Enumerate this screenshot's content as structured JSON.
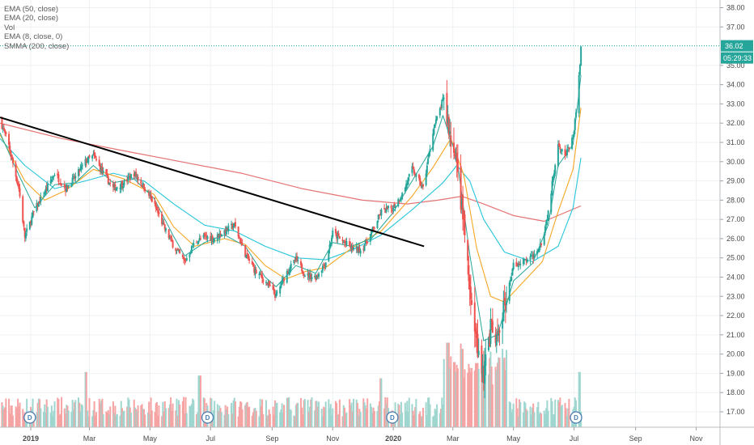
{
  "indicators": [
    "EMA (50, close)",
    "EMA (20, close)",
    "Vol",
    "EMA (8, close, 0)",
    "SMMA (200, close)"
  ],
  "colors": {
    "up": "#26a69a",
    "down": "#ef5350",
    "ema50": "#26c6da",
    "ema20": "#f6a623",
    "ema8": "#26a69a",
    "smma200": "#e57373",
    "trendline": "#000000",
    "price_badge": "#26a69a",
    "vol_up": "#9fd6cf",
    "vol_down": "#f5a3a3"
  },
  "chart_data": {
    "type": "candlestick",
    "x_labels": [
      {
        "label": "2019",
        "date": "2019-01-01",
        "bold": true
      },
      {
        "label": "Mar",
        "date": "2019-03-01"
      },
      {
        "label": "May",
        "date": "2019-05-01"
      },
      {
        "label": "Jul",
        "date": "2019-07-01"
      },
      {
        "label": "Sep",
        "date": "2019-09-01"
      },
      {
        "label": "Nov",
        "date": "2019-11-01"
      },
      {
        "label": "2020",
        "date": "2020-01-01",
        "bold": true
      },
      {
        "label": "Mar",
        "date": "2020-03-01"
      },
      {
        "label": "May",
        "date": "2020-05-01"
      },
      {
        "label": "Jul",
        "date": "2020-07-01"
      },
      {
        "label": "Sep",
        "date": "2020-09-01"
      },
      {
        "label": "Nov",
        "date": "2020-11-01"
      }
    ],
    "y_ticks": [
      "17.00",
      "18.00",
      "19.00",
      "20.00",
      "21.00",
      "22.00",
      "23.00",
      "24.00",
      "25.00",
      "26.00",
      "27.00",
      "28.00",
      "29.00",
      "30.00",
      "31.00",
      "32.00",
      "33.00",
      "34.00",
      "35.00",
      "37.00",
      "38.00"
    ],
    "ylim": [
      16.2,
      38.4
    ],
    "xlim": [
      "2018-12-01",
      "2020-11-25"
    ],
    "last_price": "36.02",
    "last_price_value": 36.02,
    "countdown": "05:29:33",
    "dividend_markers": [
      {
        "label": "D",
        "date": "2018-12-31"
      },
      {
        "label": "D",
        "date": "2019-06-28"
      },
      {
        "label": "D",
        "date": "2019-12-31"
      },
      {
        "label": "D",
        "date": "2020-07-03"
      }
    ],
    "price_path": [
      [
        "2018-12-01",
        32.2
      ],
      [
        "2018-12-10",
        30.8
      ],
      [
        "2018-12-20",
        28.6
      ],
      [
        "2018-12-26",
        26.1
      ],
      [
        "2019-01-05",
        27.5
      ],
      [
        "2019-01-15",
        28.4
      ],
      [
        "2019-01-25",
        29.4
      ],
      [
        "2019-02-05",
        28.6
      ],
      [
        "2019-02-15",
        29.2
      ],
      [
        "2019-02-25",
        30.0
      ],
      [
        "2019-03-05",
        30.3
      ],
      [
        "2019-03-15",
        29.4
      ],
      [
        "2019-03-25",
        28.6
      ],
      [
        "2019-04-05",
        28.9
      ],
      [
        "2019-04-15",
        29.4
      ],
      [
        "2019-04-25",
        28.7
      ],
      [
        "2019-05-05",
        27.8
      ],
      [
        "2019-05-15",
        26.6
      ],
      [
        "2019-05-25",
        25.6
      ],
      [
        "2019-06-05",
        24.8
      ],
      [
        "2019-06-15",
        25.8
      ],
      [
        "2019-06-25",
        26.1
      ],
      [
        "2019-07-05",
        26.0
      ],
      [
        "2019-07-15",
        26.4
      ],
      [
        "2019-07-25",
        26.7
      ],
      [
        "2019-08-05",
        25.2
      ],
      [
        "2019-08-15",
        24.3
      ],
      [
        "2019-08-25",
        23.8
      ],
      [
        "2019-09-05",
        23.0
      ],
      [
        "2019-09-15",
        24.2
      ],
      [
        "2019-09-25",
        24.9
      ],
      [
        "2019-10-05",
        24.1
      ],
      [
        "2019-10-15",
        24.0
      ],
      [
        "2019-10-25",
        24.8
      ],
      [
        "2019-11-01",
        26.3
      ],
      [
        "2019-11-10",
        25.9
      ],
      [
        "2019-11-20",
        25.5
      ],
      [
        "2019-11-30",
        25.4
      ],
      [
        "2019-12-10",
        26.3
      ],
      [
        "2019-12-20",
        27.4
      ],
      [
        "2019-12-31",
        27.6
      ],
      [
        "2020-01-10",
        28.3
      ],
      [
        "2020-01-20",
        29.6
      ],
      [
        "2020-01-31",
        28.6
      ],
      [
        "2020-02-10",
        31.6
      ],
      [
        "2020-02-20",
        33.2
      ],
      [
        "2020-02-28",
        31.0
      ],
      [
        "2020-03-05",
        29.6
      ],
      [
        "2020-03-12",
        26.8
      ],
      [
        "2020-03-18",
        23.2
      ],
      [
        "2020-03-25",
        20.5
      ],
      [
        "2020-04-01",
        19.0
      ],
      [
        "2020-04-08",
        21.3
      ],
      [
        "2020-04-15",
        20.6
      ],
      [
        "2020-04-22",
        22.6
      ],
      [
        "2020-05-01",
        24.6
      ],
      [
        "2020-05-10",
        24.8
      ],
      [
        "2020-05-20",
        25.0
      ],
      [
        "2020-05-30",
        25.9
      ],
      [
        "2020-06-05",
        27.4
      ],
      [
        "2020-06-10",
        29.2
      ],
      [
        "2020-06-15",
        31.0
      ],
      [
        "2020-06-22",
        30.3
      ],
      [
        "2020-06-30",
        31.2
      ],
      [
        "2020-07-05",
        33.5
      ],
      [
        "2020-07-08",
        36.02
      ]
    ],
    "ema8": [
      [
        "2018-12-01",
        31.5
      ],
      [
        "2018-12-20",
        29.3
      ],
      [
        "2019-01-05",
        27.6
      ],
      [
        "2019-01-25",
        28.8
      ],
      [
        "2019-02-15",
        28.9
      ],
      [
        "2019-03-05",
        29.8
      ],
      [
        "2019-03-25",
        28.9
      ],
      [
        "2019-04-15",
        29.1
      ],
      [
        "2019-05-05",
        28.1
      ],
      [
        "2019-05-25",
        26.1
      ],
      [
        "2019-06-05",
        25.1
      ],
      [
        "2019-06-25",
        25.8
      ],
      [
        "2019-07-15",
        26.2
      ],
      [
        "2019-08-05",
        25.6
      ],
      [
        "2019-08-25",
        24.0
      ],
      [
        "2019-09-05",
        23.5
      ],
      [
        "2019-09-25",
        24.6
      ],
      [
        "2019-10-15",
        24.2
      ],
      [
        "2019-11-01",
        25.8
      ],
      [
        "2019-11-20",
        25.6
      ],
      [
        "2019-12-10",
        26.0
      ],
      [
        "2019-12-31",
        27.3
      ],
      [
        "2020-01-20",
        29.0
      ],
      [
        "2020-02-10",
        30.8
      ],
      [
        "2020-02-20",
        32.4
      ],
      [
        "2020-03-05",
        30.2
      ],
      [
        "2020-03-18",
        25.2
      ],
      [
        "2020-04-01",
        20.7
      ],
      [
        "2020-04-15",
        21.0
      ],
      [
        "2020-05-01",
        23.8
      ],
      [
        "2020-05-20",
        24.7
      ],
      [
        "2020-06-05",
        26.7
      ],
      [
        "2020-06-15",
        29.8
      ],
      [
        "2020-06-30",
        30.9
      ],
      [
        "2020-07-08",
        34.5
      ]
    ],
    "ema20": [
      [
        "2018-12-01",
        31.4
      ],
      [
        "2018-12-26",
        29.0
      ],
      [
        "2019-01-15",
        28.0
      ],
      [
        "2019-02-05",
        28.5
      ],
      [
        "2019-03-05",
        29.6
      ],
      [
        "2019-04-05",
        29.1
      ],
      [
        "2019-05-05",
        28.3
      ],
      [
        "2019-05-25",
        26.6
      ],
      [
        "2019-06-15",
        25.6
      ],
      [
        "2019-07-15",
        26.0
      ],
      [
        "2019-08-05",
        25.7
      ],
      [
        "2019-08-25",
        24.6
      ],
      [
        "2019-09-15",
        23.9
      ],
      [
        "2019-10-05",
        24.3
      ],
      [
        "2019-10-25",
        24.5
      ],
      [
        "2019-11-20",
        25.5
      ],
      [
        "2019-12-20",
        26.4
      ],
      [
        "2020-01-20",
        28.2
      ],
      [
        "2020-02-10",
        29.7
      ],
      [
        "2020-02-28",
        31.2
      ],
      [
        "2020-03-12",
        29.3
      ],
      [
        "2020-03-25",
        25.5
      ],
      [
        "2020-04-08",
        23.0
      ],
      [
        "2020-04-22",
        22.7
      ],
      [
        "2020-05-10",
        23.7
      ],
      [
        "2020-05-30",
        24.8
      ],
      [
        "2020-06-15",
        27.4
      ],
      [
        "2020-06-30",
        29.6
      ],
      [
        "2020-07-08",
        32.8
      ]
    ],
    "ema50": [
      [
        "2018-12-01",
        31.2
      ],
      [
        "2018-12-26",
        29.8
      ],
      [
        "2019-01-25",
        28.6
      ],
      [
        "2019-02-25",
        29.0
      ],
      [
        "2019-03-25",
        29.4
      ],
      [
        "2019-04-25",
        29.0
      ],
      [
        "2019-05-25",
        27.8
      ],
      [
        "2019-06-25",
        26.7
      ],
      [
        "2019-07-25",
        26.4
      ],
      [
        "2019-08-25",
        25.6
      ],
      [
        "2019-09-25",
        25.0
      ],
      [
        "2019-10-25",
        24.9
      ],
      [
        "2019-11-20",
        25.4
      ],
      [
        "2019-12-20",
        26.2
      ],
      [
        "2020-01-20",
        27.5
      ],
      [
        "2020-02-20",
        28.9
      ],
      [
        "2020-03-05",
        29.8
      ],
      [
        "2020-03-18",
        29.0
      ],
      [
        "2020-04-01",
        27.0
      ],
      [
        "2020-04-22",
        25.3
      ],
      [
        "2020-05-20",
        24.8
      ],
      [
        "2020-06-15",
        25.6
      ],
      [
        "2020-06-30",
        27.6
      ],
      [
        "2020-07-08",
        30.2
      ]
    ],
    "smma200": [
      [
        "2018-12-01",
        32.0
      ],
      [
        "2019-02-01",
        31.2
      ],
      [
        "2019-04-01",
        30.6
      ],
      [
        "2019-06-01",
        30.0
      ],
      [
        "2019-08-01",
        29.4
      ],
      [
        "2019-10-01",
        28.6
      ],
      [
        "2019-12-01",
        28.0
      ],
      [
        "2020-01-15",
        27.8
      ],
      [
        "2020-02-15",
        28.0
      ],
      [
        "2020-03-10",
        28.2
      ],
      [
        "2020-04-01",
        27.8
      ],
      [
        "2020-05-01",
        27.2
      ],
      [
        "2020-06-01",
        26.9
      ],
      [
        "2020-07-08",
        27.7
      ]
    ],
    "trendline": [
      [
        "2018-12-01",
        32.3
      ],
      [
        "2020-02-01",
        25.6
      ]
    ],
    "volume_spikes": [
      {
        "date": "2019-02-25",
        "level": 0.62
      },
      {
        "date": "2019-06-20",
        "level": 0.58
      },
      {
        "date": "2019-12-20",
        "level": 0.55
      },
      {
        "date": "2020-02-25",
        "level": 0.95
      },
      {
        "date": "2020-03-10",
        "level": 0.88
      },
      {
        "date": "2020-03-25",
        "level": 0.72
      },
      {
        "date": "2020-07-06",
        "level": 0.62
      }
    ]
  }
}
